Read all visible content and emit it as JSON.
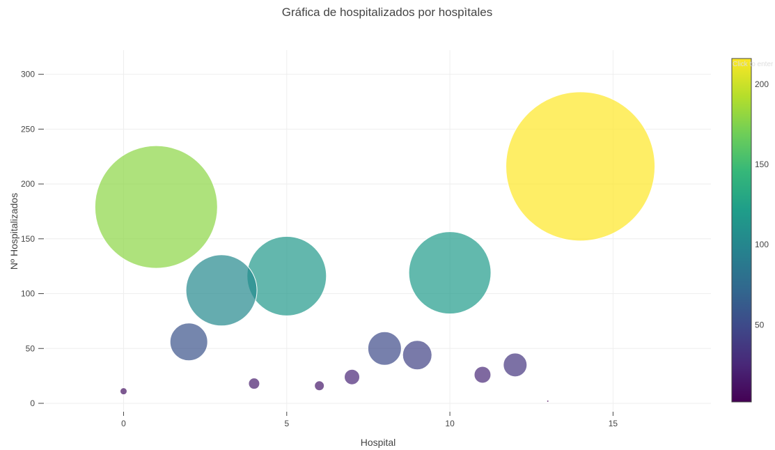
{
  "chart_data": {
    "type": "scatter",
    "title": "Gráfica de hospitalizados por hospìtales",
    "xlabel": "Hospital",
    "ylabel": "Nº Hospitalizados",
    "xlim": [
      -2.4,
      18
    ],
    "ylim": [
      -7,
      322
    ],
    "x_ticks": [
      0,
      5,
      10,
      15
    ],
    "y_ticks": [
      0,
      50,
      100,
      150,
      200,
      250,
      300
    ],
    "grid": true,
    "points": [
      {
        "x": 0,
        "y": 11,
        "color_value": 12,
        "size": 5
      },
      {
        "x": 1,
        "y": 179,
        "color_value": 179,
        "size": 88
      },
      {
        "x": 2,
        "y": 56,
        "color_value": 56,
        "size": 27
      },
      {
        "x": 3,
        "y": 103,
        "color_value": 103,
        "size": 51
      },
      {
        "x": 4,
        "y": 18,
        "color_value": 18,
        "size": 8
      },
      {
        "x": 5,
        "y": 116,
        "color_value": 116,
        "size": 57
      },
      {
        "x": 6,
        "y": 16,
        "color_value": 16,
        "size": 7
      },
      {
        "x": 7,
        "y": 24,
        "color_value": 24,
        "size": 11
      },
      {
        "x": 8,
        "y": 50,
        "color_value": 50,
        "size": 24
      },
      {
        "x": 9,
        "y": 44,
        "color_value": 44,
        "size": 21
      },
      {
        "x": 10,
        "y": 119,
        "color_value": 119,
        "size": 59
      },
      {
        "x": 11,
        "y": 26,
        "color_value": 26,
        "size": 12
      },
      {
        "x": 12,
        "y": 35,
        "color_value": 35,
        "size": 17
      },
      {
        "x": 13,
        "y": 2,
        "color_value": 2,
        "size": 1
      },
      {
        "x": 14,
        "y": 216,
        "color_value": 216,
        "size": 107
      }
    ],
    "colorbar": {
      "colorscale": "Viridis",
      "cmin": 2,
      "cmax": 216,
      "ticks": [
        50,
        100,
        150,
        200
      ],
      "title_placeholder": "Click to enter Colorscale title"
    },
    "marker_opacity": 0.7,
    "marker_line_color": "#ffffff"
  }
}
